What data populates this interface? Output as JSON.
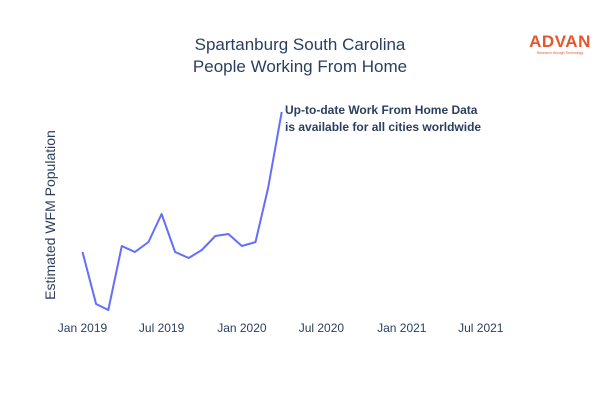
{
  "logo": {
    "word": "ADVAN",
    "tagline": "Research through Technology"
  },
  "colors": {
    "line": "#636efa",
    "text": "#2a3f5f",
    "brand": "#e8552a"
  },
  "chart_data": {
    "type": "line",
    "title": [
      "Spartanburg South Carolina",
      "People Working From Home"
    ],
    "ylabel": "Estimated WFM Population",
    "xlabel": "",
    "x_tick_labels": [
      "Jan 2019",
      "Jul 2019",
      "Jan 2020",
      "Jul 2020",
      "Jan 2021",
      "Jul 2021"
    ],
    "x_tick_dates": [
      "2019-01-01",
      "2019-07-01",
      "2020-01-01",
      "2020-07-01",
      "2021-01-01",
      "2021-07-01"
    ],
    "xlim": [
      "2018-12-01",
      "2021-10-01"
    ],
    "ylim": [
      0,
      1
    ],
    "y_ticks_shown": false,
    "grid": false,
    "annotation": [
      "Up-to-date Work From Home Data",
      "is available for all cities worldwide"
    ],
    "series": [
      {
        "x": [
          "2019-01-01",
          "2019-02-01",
          "2019-03-01",
          "2019-04-01",
          "2019-05-01",
          "2019-06-01",
          "2019-07-01",
          "2019-08-01",
          "2019-09-01",
          "2019-10-01",
          "2019-11-01",
          "2019-12-01",
          "2020-01-01",
          "2020-02-01",
          "2020-03-01",
          "2020-04-01",
          "2020-05-01"
        ],
        "values": [
          0.29,
          0.03,
          0.0,
          0.32,
          0.29,
          0.34,
          0.48,
          0.29,
          0.26,
          0.3,
          0.37,
          0.38,
          0.32,
          0.34,
          0.61,
          0.99,
          0.0
        ],
        "drop_last": true
      }
    ]
  }
}
